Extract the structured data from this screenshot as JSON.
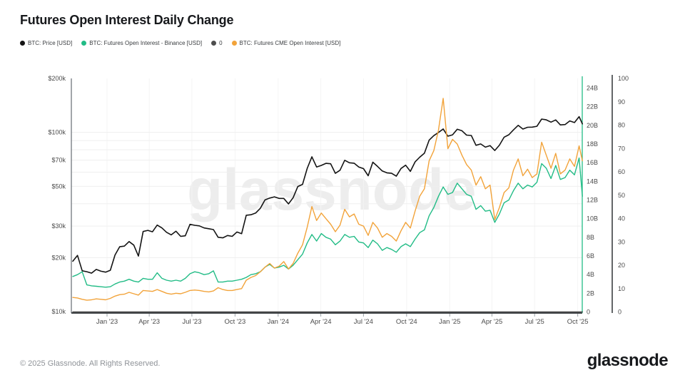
{
  "title": "Futures Open Interest Daily Change",
  "watermark": "glassnode",
  "footer": {
    "copyright": "© 2025 Glassnode. All Rights Reserved.",
    "logo": "glassnode"
  },
  "chart_data": {
    "type": "line",
    "title": "Futures Open Interest Daily Change",
    "grid": true,
    "legend_position": "top-left",
    "x_range": [
      "2022-10-20",
      "2025-10-11"
    ],
    "x_ticks": [
      {
        "date": "2023-01-01",
        "label": "Jan '23"
      },
      {
        "date": "2023-04-01",
        "label": "Apr '23"
      },
      {
        "date": "2023-07-01",
        "label": "Jul '23"
      },
      {
        "date": "2023-10-01",
        "label": "Oct '23"
      },
      {
        "date": "2024-01-01",
        "label": "Jan '24"
      },
      {
        "date": "2024-04-01",
        "label": "Apr '24"
      },
      {
        "date": "2024-07-01",
        "label": "Jul '24"
      },
      {
        "date": "2024-10-01",
        "label": "Oct '24"
      },
      {
        "date": "2025-01-01",
        "label": "Jan '25"
      },
      {
        "date": "2025-04-01",
        "label": "Apr '25"
      },
      {
        "date": "2025-07-01",
        "label": "Jul '25"
      },
      {
        "date": "2025-10-01",
        "label": "Oct '25"
      }
    ],
    "axes": {
      "price": {
        "side": "left",
        "scale": "log",
        "unit": "USD",
        "range": [
          10000,
          200000
        ],
        "ticks": [
          {
            "value": 200000,
            "label": "$200k"
          },
          {
            "value": 100000,
            "label": "$100k"
          },
          {
            "value": 70000,
            "label": "$70k"
          },
          {
            "value": 50000,
            "label": "$50k"
          },
          {
            "value": 30000,
            "label": "$30k"
          },
          {
            "value": 20000,
            "label": "$20k"
          },
          {
            "value": 10000,
            "label": "$10k"
          }
        ],
        "gridlines": [
          20000,
          30000,
          40000,
          50000,
          60000,
          70000,
          80000,
          90000,
          100000
        ]
      },
      "open_interest": {
        "side": "right",
        "scale": "linear",
        "unit": "USD billions",
        "range": [
          0,
          24
        ],
        "axis_color": "#22bc86",
        "ticks": [
          {
            "value": 0,
            "label": "0"
          },
          {
            "value": 2,
            "label": "2B"
          },
          {
            "value": 4,
            "label": "4B"
          },
          {
            "value": 6,
            "label": "6B"
          },
          {
            "value": 8,
            "label": "8B"
          },
          {
            "value": 10,
            "label": "10B"
          },
          {
            "value": 12,
            "label": "12B"
          },
          {
            "value": 14,
            "label": "14B"
          },
          {
            "value": 16,
            "label": "16B"
          },
          {
            "value": 18,
            "label": "18B"
          },
          {
            "value": 20,
            "label": "20B"
          },
          {
            "value": 22,
            "label": "22B"
          },
          {
            "value": 24,
            "label": "24B"
          }
        ]
      },
      "percent": {
        "side": "far-right",
        "scale": "linear",
        "range": [
          0,
          100
        ],
        "axis_color": "#3c4043",
        "ticks": [
          {
            "value": 0,
            "label": "0"
          },
          {
            "value": 10,
            "label": "10"
          },
          {
            "value": 20,
            "label": "20"
          },
          {
            "value": 30,
            "label": "30"
          },
          {
            "value": 40,
            "label": "40"
          },
          {
            "value": 50,
            "label": "50"
          },
          {
            "value": 60,
            "label": "60"
          },
          {
            "value": 70,
            "label": "70"
          },
          {
            "value": 80,
            "label": "80"
          },
          {
            "value": 90,
            "label": "90"
          },
          {
            "value": 100,
            "label": "100"
          }
        ]
      }
    },
    "dates": [
      "2022-10-20",
      "2022-10-30",
      "2022-11-09",
      "2022-11-19",
      "2022-11-29",
      "2022-12-09",
      "2022-12-19",
      "2022-12-29",
      "2023-01-08",
      "2023-01-18",
      "2023-01-28",
      "2023-02-07",
      "2023-02-17",
      "2023-02-27",
      "2023-03-09",
      "2023-03-19",
      "2023-03-29",
      "2023-04-08",
      "2023-04-18",
      "2023-04-28",
      "2023-05-08",
      "2023-05-18",
      "2023-05-28",
      "2023-06-07",
      "2023-06-17",
      "2023-06-27",
      "2023-07-07",
      "2023-07-17",
      "2023-07-27",
      "2023-08-06",
      "2023-08-16",
      "2023-08-26",
      "2023-09-05",
      "2023-09-15",
      "2023-09-25",
      "2023-10-05",
      "2023-10-15",
      "2023-10-25",
      "2023-11-04",
      "2023-11-14",
      "2023-11-24",
      "2023-12-04",
      "2023-12-14",
      "2023-12-24",
      "2024-01-03",
      "2024-01-13",
      "2024-01-23",
      "2024-02-02",
      "2024-02-12",
      "2024-02-22",
      "2024-03-03",
      "2024-03-13",
      "2024-03-23",
      "2024-04-02",
      "2024-04-12",
      "2024-04-22",
      "2024-05-02",
      "2024-05-12",
      "2024-05-22",
      "2024-06-01",
      "2024-06-11",
      "2024-06-21",
      "2024-07-01",
      "2024-07-11",
      "2024-07-21",
      "2024-07-31",
      "2024-08-10",
      "2024-08-20",
      "2024-08-30",
      "2024-09-09",
      "2024-09-19",
      "2024-09-29",
      "2024-10-09",
      "2024-10-19",
      "2024-10-29",
      "2024-11-08",
      "2024-11-18",
      "2024-11-28",
      "2024-12-08",
      "2024-12-18",
      "2024-12-28",
      "2025-01-07",
      "2025-01-17",
      "2025-01-27",
      "2025-02-06",
      "2025-02-16",
      "2025-02-26",
      "2025-03-08",
      "2025-03-18",
      "2025-03-28",
      "2025-04-07",
      "2025-04-17",
      "2025-04-27",
      "2025-05-07",
      "2025-05-17",
      "2025-05-27",
      "2025-06-06",
      "2025-06-16",
      "2025-06-26",
      "2025-07-06",
      "2025-07-16",
      "2025-07-26",
      "2025-08-05",
      "2025-08-15",
      "2025-08-25",
      "2025-09-04",
      "2025-09-14",
      "2025-09-24",
      "2025-10-04",
      "2025-10-11"
    ],
    "series": [
      {
        "name": "BTC: Price [USD]",
        "axis": "price",
        "color": "#141414",
        "unit": "USD",
        "values": [
          19100,
          20600,
          16900,
          16700,
          16400,
          17200,
          16800,
          16600,
          17000,
          20700,
          23000,
          23200,
          24600,
          23500,
          20400,
          28000,
          28400,
          27900,
          30400,
          29300,
          27700,
          26800,
          28100,
          26300,
          26500,
          30700,
          30300,
          30100,
          29300,
          29000,
          28700,
          26000,
          25800,
          26600,
          26300,
          27800,
          27200,
          34500,
          34700,
          35500,
          37700,
          42000,
          43000,
          43700,
          42800,
          42800,
          39900,
          43200,
          49900,
          51300,
          63100,
          73100,
          64100,
          65400,
          67200,
          66800,
          59100,
          61500,
          69900,
          67700,
          67300,
          64100,
          62800,
          57300,
          68200,
          64600,
          60900,
          59500,
          59100,
          57000,
          62900,
          65600,
          60600,
          68400,
          72700,
          76500,
          90500,
          95900,
          99900,
          104500,
          95200,
          96900,
          104100,
          102100,
          96600,
          96100,
          84700,
          86200,
          82700,
          84400,
          79200,
          84900,
          94000,
          97000,
          103200,
          109500,
          104400,
          106800,
          107000,
          108200,
          118700,
          117500,
          114100,
          117400,
          110100,
          110600,
          115900,
          113400,
          122400,
          111500
        ]
      },
      {
        "name": "BTC: Futures Open Interest - Binance [USD]",
        "axis": "open_interest",
        "color": "#22bc86",
        "unit": "USD billions",
        "values": [
          3.8,
          4.0,
          4.3,
          2.9,
          2.8,
          2.75,
          2.7,
          2.65,
          2.7,
          3.0,
          3.2,
          3.3,
          3.5,
          3.3,
          3.2,
          3.6,
          3.5,
          3.5,
          4.2,
          3.6,
          3.4,
          3.3,
          3.4,
          3.3,
          3.6,
          4.1,
          4.3,
          4.2,
          4.0,
          4.1,
          4.4,
          3.2,
          3.2,
          3.3,
          3.3,
          3.4,
          3.5,
          3.7,
          4.0,
          4.1,
          4.3,
          4.8,
          5.1,
          4.7,
          4.8,
          5.0,
          4.6,
          5.0,
          5.6,
          6.2,
          7.4,
          8.3,
          7.6,
          8.4,
          8.0,
          7.8,
          7.2,
          7.6,
          8.3,
          8.0,
          8.1,
          7.5,
          7.4,
          6.9,
          7.7,
          7.3,
          6.6,
          6.9,
          6.7,
          6.4,
          7.0,
          7.3,
          7.0,
          7.8,
          8.5,
          8.8,
          10.3,
          11.2,
          12.4,
          13.4,
          12.6,
          12.8,
          13.8,
          13.2,
          12.6,
          12.4,
          11.0,
          11.4,
          10.8,
          10.9,
          9.6,
          10.5,
          11.7,
          12.0,
          13.0,
          13.8,
          13.2,
          13.6,
          13.4,
          13.9,
          15.9,
          15.4,
          14.3,
          15.7,
          14.2,
          14.4,
          15.2,
          14.7,
          16.5,
          12.4
        ]
      },
      {
        "name": "0",
        "axis": "percent",
        "color": "#4d4d4d",
        "constant": 0
      },
      {
        "name": "BTC: Futures CME Open Interest [USD]",
        "axis": "open_interest",
        "color": "#f2a33a",
        "unit": "USD billions",
        "values": [
          1.55,
          1.5,
          1.35,
          1.25,
          1.3,
          1.4,
          1.35,
          1.3,
          1.45,
          1.7,
          1.85,
          1.9,
          2.1,
          1.95,
          1.8,
          2.3,
          2.25,
          2.2,
          2.4,
          2.2,
          2.0,
          1.9,
          2.0,
          1.95,
          2.1,
          2.3,
          2.35,
          2.3,
          2.2,
          2.15,
          2.25,
          2.6,
          2.4,
          2.3,
          2.3,
          2.4,
          2.5,
          3.4,
          3.7,
          3.9,
          4.3,
          4.8,
          5.2,
          4.7,
          4.9,
          5.4,
          4.6,
          5.2,
          6.3,
          7.2,
          9.1,
          11.3,
          9.8,
          10.6,
          10.0,
          9.4,
          8.6,
          9.3,
          11.0,
          10.2,
          10.5,
          9.4,
          9.2,
          8.2,
          9.6,
          9.0,
          8.0,
          8.4,
          8.1,
          7.6,
          8.7,
          9.6,
          9.0,
          10.8,
          12.4,
          13.2,
          16.2,
          17.3,
          19.5,
          22.9,
          17.5,
          18.5,
          18.0,
          16.8,
          15.8,
          15.2,
          13.6,
          14.5,
          13.2,
          13.6,
          9.9,
          11.2,
          12.8,
          13.3,
          15.2,
          16.4,
          14.6,
          15.3,
          14.4,
          14.8,
          18.2,
          16.8,
          15.4,
          17.0,
          14.8,
          15.2,
          16.4,
          15.6,
          17.8,
          16.2
        ]
      }
    ]
  }
}
